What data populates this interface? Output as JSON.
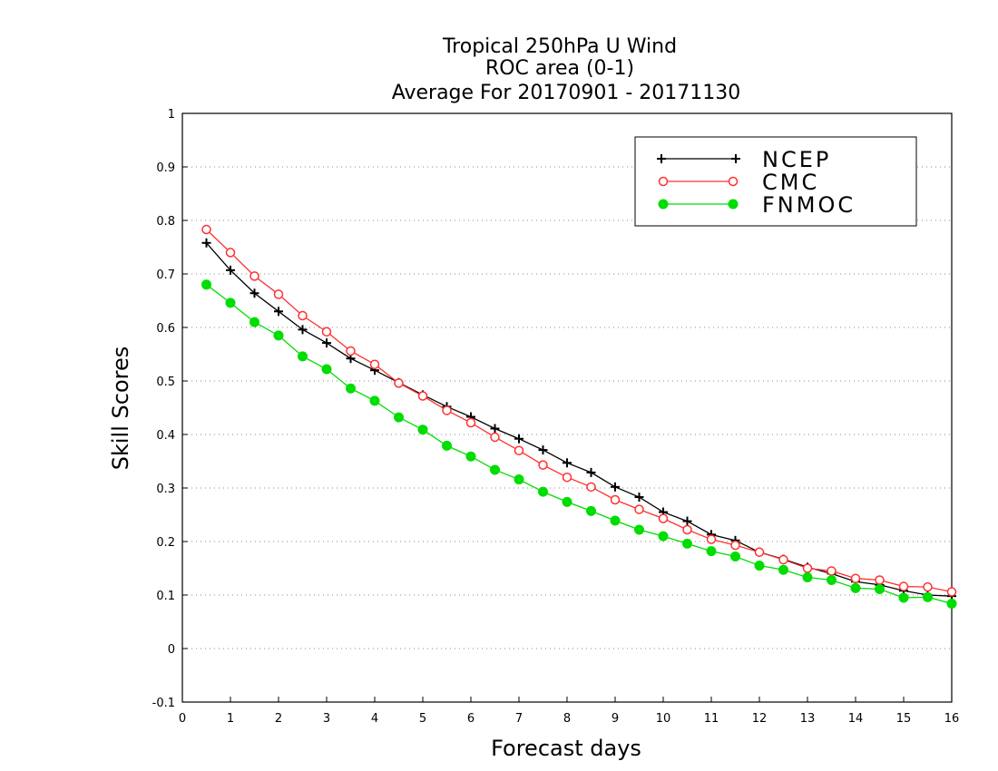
{
  "chart_data": {
    "type": "line",
    "title": [
      "Tropical 250hPa U Wind",
      "ROC area (0-1)",
      "Average For 20170901 - 20171130"
    ],
    "xlabel": "Forecast days",
    "ylabel": "Skill Scores",
    "xlim": [
      0,
      16
    ],
    "ylim": [
      -0.1,
      1
    ],
    "xticks": [
      0,
      1,
      2,
      3,
      4,
      5,
      6,
      7,
      8,
      9,
      10,
      11,
      12,
      13,
      14,
      15,
      16
    ],
    "yticks": [
      -0.1,
      0,
      0.1,
      0.2,
      0.3,
      0.4,
      0.5,
      0.6,
      0.7,
      0.8,
      0.9,
      1
    ],
    "ytick_labels": [
      "-0.1",
      "0",
      "0.1",
      "0.2",
      "0.3",
      "0.4",
      "0.5",
      "0.6",
      "0.7",
      "0.8",
      "0.9",
      "1"
    ],
    "grid": "horizontal-dotted",
    "legend_position": "top-right",
    "x": [
      0.5,
      1,
      1.5,
      2,
      2.5,
      3,
      3.5,
      4,
      4.5,
      5,
      5.5,
      6,
      6.5,
      7,
      7.5,
      8,
      8.5,
      9,
      9.5,
      10,
      10.5,
      11,
      11.5,
      12,
      12.5,
      13,
      13.5,
      14,
      14.5,
      15,
      15.5,
      16
    ],
    "series": [
      {
        "name": "NCEP",
        "color": "#000000",
        "marker": "plus",
        "values": [
          0.758,
          0.707,
          0.664,
          0.63,
          0.596,
          0.571,
          0.542,
          0.52,
          0.497,
          0.474,
          0.452,
          0.433,
          0.411,
          0.392,
          0.371,
          0.347,
          0.329,
          0.302,
          0.283,
          0.255,
          0.238,
          0.213,
          0.202,
          0.18,
          0.167,
          0.152,
          0.14,
          0.125,
          0.119,
          0.108,
          0.1,
          0.098
        ]
      },
      {
        "name": "CMC",
        "color": "#ff3030",
        "marker": "open-circle",
        "values": [
          0.783,
          0.74,
          0.696,
          0.662,
          0.622,
          0.592,
          0.556,
          0.531,
          0.496,
          0.472,
          0.445,
          0.422,
          0.395,
          0.37,
          0.343,
          0.32,
          0.302,
          0.278,
          0.26,
          0.243,
          0.222,
          0.204,
          0.193,
          0.18,
          0.166,
          0.15,
          0.145,
          0.131,
          0.128,
          0.116,
          0.115,
          0.106
        ]
      },
      {
        "name": "FNMOC",
        "color": "#00dd00",
        "marker": "filled-circle",
        "values": [
          0.68,
          0.646,
          0.61,
          0.585,
          0.546,
          0.522,
          0.486,
          0.463,
          0.432,
          0.409,
          0.379,
          0.359,
          0.334,
          0.316,
          0.293,
          0.274,
          0.257,
          0.239,
          0.222,
          0.21,
          0.196,
          0.182,
          0.172,
          0.155,
          0.147,
          0.133,
          0.128,
          0.113,
          0.111,
          0.095,
          0.096,
          0.084
        ]
      }
    ]
  }
}
